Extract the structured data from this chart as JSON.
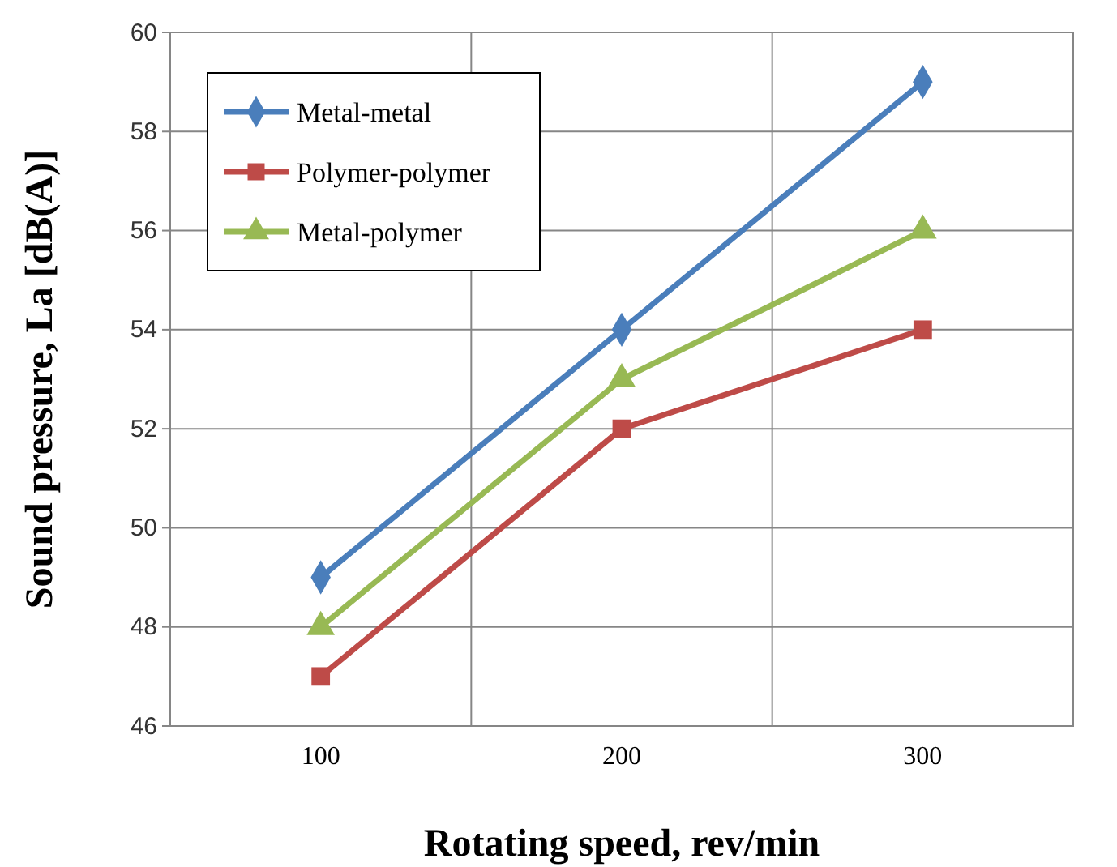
{
  "chart_data": {
    "type": "line",
    "xlabel": "Rotating speed, rev/min",
    "ylabel": "Sound pressure, La [dB(A)]",
    "categories": [
      "100",
      "200",
      "300"
    ],
    "series": [
      {
        "name": "Metal-metal",
        "color": "#4a7ebb",
        "marker": "diamond",
        "values": [
          49,
          54,
          59
        ]
      },
      {
        "name": "Polymer-polymer",
        "color": "#be4b48",
        "marker": "square",
        "values": [
          47,
          52,
          54
        ]
      },
      {
        "name": "Metal-polymer",
        "color": "#98b954",
        "marker": "triangle",
        "values": [
          48,
          53,
          56
        ]
      }
    ],
    "ylim": [
      46,
      60
    ],
    "yticks": [
      46,
      48,
      50,
      52,
      54,
      56,
      58,
      60
    ],
    "grid": true,
    "legend": "top left"
  }
}
